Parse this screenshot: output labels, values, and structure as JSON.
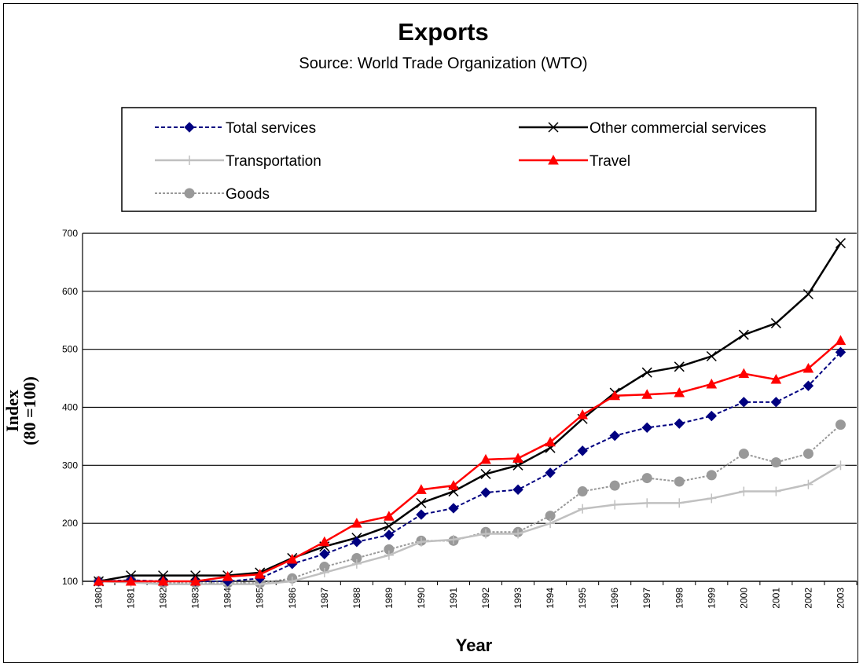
{
  "chart_data": {
    "type": "line",
    "title": "Exports",
    "subtitle": "Source: World Trade Organization (WTO)",
    "xlabel": "Year",
    "ylabel_line1": "Index",
    "ylabel_line2": "(80 =100)",
    "ylim": [
      100,
      700
    ],
    "yticks": [
      100,
      200,
      300,
      400,
      500,
      600,
      700
    ],
    "grid": true,
    "legend_position": "top",
    "categories": [
      "1980",
      "1981",
      "1982",
      "1983",
      "1984",
      "1985",
      "1986",
      "1987",
      "1988",
      "1989",
      "1990",
      "1991",
      "1992",
      "1993",
      "1994",
      "1995",
      "1996",
      "1997",
      "1998",
      "1999",
      "2000",
      "2001",
      "2002",
      "2003"
    ],
    "series": [
      {
        "name": "Total services",
        "color": "#000080",
        "marker": "diamond",
        "dash": "dashed",
        "values": [
          100,
          102,
          100,
          100,
          100,
          105,
          130,
          147,
          168,
          180,
          215,
          226,
          253,
          258,
          287,
          325,
          351,
          365,
          372,
          385,
          409,
          409,
          437,
          495
        ]
      },
      {
        "name": "Other commercial services",
        "color": "#000000",
        "marker": "x",
        "dash": "solid",
        "values": [
          100,
          110,
          110,
          110,
          110,
          115,
          140,
          160,
          175,
          195,
          235,
          255,
          285,
          300,
          330,
          380,
          425,
          460,
          470,
          488,
          525,
          545,
          595,
          683
        ]
      },
      {
        "name": "Transportation",
        "color": "#c0c0c0",
        "marker": "plus",
        "dash": "solid",
        "values": [
          100,
          98,
          95,
          95,
          95,
          95,
          100,
          115,
          130,
          145,
          168,
          172,
          182,
          182,
          200,
          225,
          232,
          235,
          235,
          243,
          255,
          255,
          267,
          300
        ]
      },
      {
        "name": "Travel",
        "color": "#ff0000",
        "marker": "triangle",
        "dash": "solid",
        "values": [
          100,
          100,
          100,
          100,
          108,
          112,
          138,
          168,
          200,
          212,
          258,
          265,
          310,
          312,
          340,
          387,
          420,
          422,
          425,
          440,
          458,
          448,
          467,
          515
        ]
      },
      {
        "name": "Goods",
        "color": "#999999",
        "marker": "circle",
        "dash": "dotted",
        "values": [
          100,
          102,
          97,
          97,
          97,
          97,
          105,
          125,
          140,
          155,
          170,
          170,
          185,
          185,
          213,
          255,
          265,
          278,
          272,
          283,
          320,
          305,
          320,
          370
        ]
      }
    ]
  }
}
